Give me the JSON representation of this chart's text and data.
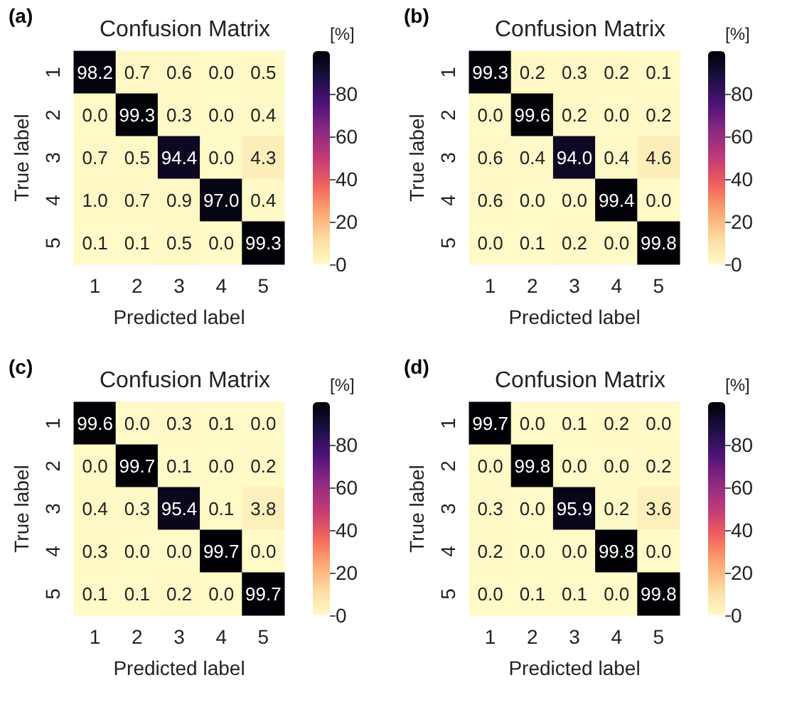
{
  "chart_data": [
    {
      "type": "heatmap",
      "title": "Confusion Matrix",
      "annotations": [
        "(a)"
      ],
      "xlabel": "Predicted label",
      "ylabel": "True label",
      "clabel": "[%]",
      "categories": [
        "1",
        "2",
        "3",
        "4",
        "5"
      ],
      "y_categories": [
        "1",
        "2",
        "3",
        "4",
        "5"
      ],
      "clim": [
        0,
        100
      ],
      "cticks": [
        0,
        20,
        40,
        60,
        80
      ],
      "cells": [
        [
          98.2,
          0.7,
          0.6,
          0.0,
          0.5
        ],
        [
          0.0,
          99.3,
          0.3,
          0.0,
          0.4
        ],
        [
          0.7,
          0.5,
          94.4,
          0.0,
          4.3
        ],
        [
          1.0,
          0.7,
          0.9,
          97.0,
          0.4
        ],
        [
          0.1,
          0.1,
          0.5,
          0.0,
          99.3
        ]
      ],
      "cell_labels": [
        [
          "98.2",
          "0.7",
          "0.6",
          "0.0",
          "0.5"
        ],
        [
          "0.0",
          "99.3",
          "0.3",
          "0.0",
          "0.4"
        ],
        [
          "0.7",
          "0.5",
          "94.4",
          "0.0",
          "4.3"
        ],
        [
          "1.0",
          "0.7",
          "0.9",
          "97.0",
          "0.4"
        ],
        [
          "0.1",
          "0.1",
          "0.5",
          "0.0",
          "99.3"
        ]
      ]
    },
    {
      "type": "heatmap",
      "title": "Confusion Matrix",
      "annotations": [
        "(b)"
      ],
      "xlabel": "Predicted label",
      "ylabel": "True label",
      "clabel": "[%]",
      "categories": [
        "1",
        "2",
        "3",
        "4",
        "5"
      ],
      "y_categories": [
        "1",
        "2",
        "3",
        "4",
        "5"
      ],
      "clim": [
        0,
        100
      ],
      "cticks": [
        0,
        20,
        40,
        60,
        80
      ],
      "cells": [
        [
          99.3,
          0.2,
          0.3,
          0.2,
          0.1
        ],
        [
          0.0,
          99.6,
          0.2,
          0.0,
          0.2
        ],
        [
          0.6,
          0.4,
          94.0,
          0.4,
          4.6
        ],
        [
          0.6,
          0.0,
          0.0,
          99.4,
          0.0
        ],
        [
          0.0,
          0.1,
          0.2,
          0.0,
          99.8
        ]
      ],
      "cell_labels": [
        [
          "99.3",
          "0.2",
          "0.3",
          "0.2",
          "0.1"
        ],
        [
          "0.0",
          "99.6",
          "0.2",
          "0.0",
          "0.2"
        ],
        [
          "0.6",
          "0.4",
          "94.0",
          "0.4",
          "4.6"
        ],
        [
          "0.6",
          "0.0",
          "0.0",
          "99.4",
          "0.0"
        ],
        [
          "0.0",
          "0.1",
          "0.2",
          "0.0",
          "99.8"
        ]
      ]
    },
    {
      "type": "heatmap",
      "title": "Confusion Matrix",
      "annotations": [
        "(c)"
      ],
      "xlabel": "Predicted label",
      "ylabel": "True label",
      "clabel": "[%]",
      "categories": [
        "1",
        "2",
        "3",
        "4",
        "5"
      ],
      "y_categories": [
        "1",
        "2",
        "3",
        "4",
        "5"
      ],
      "clim": [
        0,
        100
      ],
      "cticks": [
        0,
        20,
        40,
        60,
        80
      ],
      "cells": [
        [
          99.6,
          0.0,
          0.3,
          0.1,
          0.0
        ],
        [
          0.0,
          99.7,
          0.1,
          0.0,
          0.2
        ],
        [
          0.4,
          0.3,
          95.4,
          0.1,
          3.8
        ],
        [
          0.3,
          0.0,
          0.0,
          99.7,
          0.0
        ],
        [
          0.1,
          0.1,
          0.2,
          0.0,
          99.7
        ]
      ],
      "cell_labels": [
        [
          "99.6",
          "0.0",
          "0.3",
          "0.1",
          "0.0"
        ],
        [
          "0.0",
          "99.7",
          "0.1",
          "0.0",
          "0.2"
        ],
        [
          "0.4",
          "0.3",
          "95.4",
          "0.1",
          "3.8"
        ],
        [
          "0.3",
          "0.0",
          "0.0",
          "99.7",
          "0.0"
        ],
        [
          "0.1",
          "0.1",
          "0.2",
          "0.0",
          "99.7"
        ]
      ]
    },
    {
      "type": "heatmap",
      "title": "Confusion Matrix",
      "annotations": [
        "(d)"
      ],
      "xlabel": "Predicted label",
      "ylabel": "True label",
      "clabel": "[%]",
      "categories": [
        "1",
        "2",
        "3",
        "4",
        "5"
      ],
      "y_categories": [
        "1",
        "2",
        "3",
        "4",
        "5"
      ],
      "clim": [
        0,
        100
      ],
      "cticks": [
        0,
        20,
        40,
        60,
        80
      ],
      "cells": [
        [
          99.7,
          0.0,
          0.1,
          0.2,
          0.0
        ],
        [
          0.0,
          99.8,
          0.0,
          0.0,
          0.2
        ],
        [
          0.3,
          0.0,
          95.9,
          0.2,
          3.6
        ],
        [
          0.2,
          0.0,
          0.0,
          99.8,
          0.0
        ],
        [
          0.0,
          0.1,
          0.1,
          0.0,
          99.8
        ]
      ],
      "cell_labels": [
        [
          "99.7",
          "0.0",
          "0.1",
          "0.2",
          "0.0"
        ],
        [
          "0.0",
          "99.8",
          "0.0",
          "0.0",
          "0.2"
        ],
        [
          "0.3",
          "0.0",
          "95.9",
          "0.2",
          "3.6"
        ],
        [
          "0.2",
          "0.0",
          "0.0",
          "99.8",
          "0.0"
        ],
        [
          "0.0",
          "0.1",
          "0.1",
          "0.0",
          "99.8"
        ]
      ]
    }
  ]
}
